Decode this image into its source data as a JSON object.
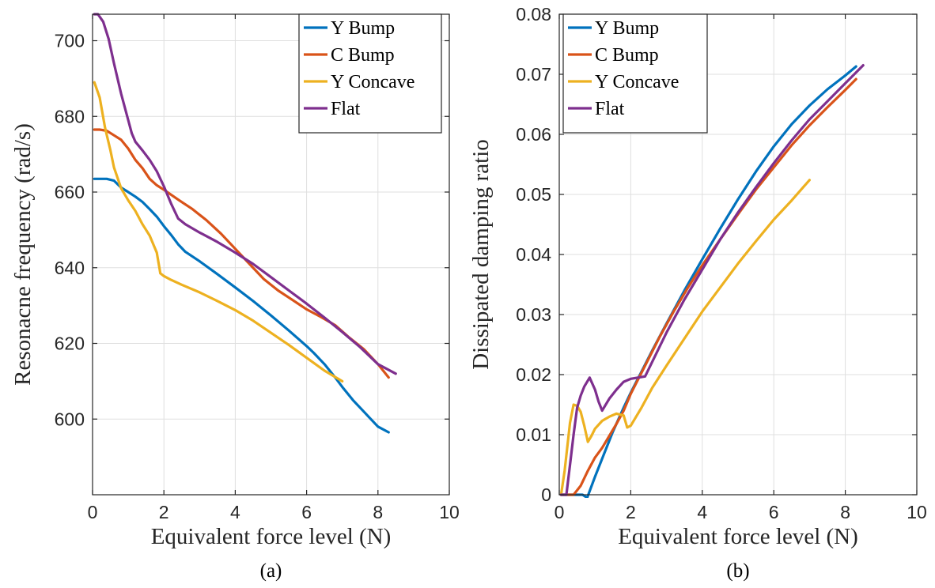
{
  "chart_data": [
    {
      "type": "line",
      "panel_label": "(a)",
      "xlabel": "Equivalent force level (N)",
      "ylabel": "Resonacne frequency (rad/s)",
      "xlim": [
        0,
        10
      ],
      "ylim": [
        580,
        707
      ],
      "xticks": [
        0,
        2,
        4,
        6,
        8,
        10
      ],
      "yticks": [
        600,
        620,
        640,
        660,
        680,
        700
      ],
      "xtick_labels": [
        "0",
        "2",
        "4",
        "6",
        "8",
        "10"
      ],
      "ytick_labels": [
        "600",
        "620",
        "640",
        "660",
        "680",
        "700"
      ],
      "grid": true,
      "legend_position": "top-right",
      "series": [
        {
          "name": "Y Bump",
          "color": "#0072BD",
          "x": [
            0.05,
            0.2,
            0.4,
            0.6,
            0.8,
            1.0,
            1.2,
            1.4,
            1.6,
            1.8,
            2.0,
            2.2,
            2.4,
            2.6,
            3.0,
            3.5,
            4.0,
            4.5,
            5.0,
            5.5,
            6.0,
            6.2,
            6.5,
            6.8,
            7.0,
            7.3,
            7.6,
            7.8,
            8.0,
            8.3
          ],
          "y": [
            663.5,
            663.5,
            663.5,
            663.0,
            661.2,
            660.0,
            658.8,
            657.4,
            655.5,
            653.5,
            651.0,
            648.7,
            646.2,
            644.2,
            641.7,
            638.3,
            634.8,
            631.2,
            627.4,
            623.4,
            619.3,
            617.5,
            614.5,
            611.0,
            608.5,
            605.0,
            602.0,
            600.0,
            598.0,
            596.5
          ]
        },
        {
          "name": "C Bump",
          "color": "#D95319",
          "x": [
            0.05,
            0.2,
            0.4,
            0.6,
            0.8,
            1.0,
            1.2,
            1.4,
            1.6,
            1.8,
            2.0,
            2.4,
            2.8,
            3.2,
            3.6,
            4.0,
            4.4,
            4.8,
            5.2,
            5.6,
            6.0,
            6.4,
            6.8,
            7.2,
            7.6,
            8.0,
            8.3
          ],
          "y": [
            676.5,
            676.5,
            676.2,
            675.0,
            673.8,
            671.5,
            668.5,
            666.3,
            663.5,
            661.8,
            660.6,
            658.0,
            655.5,
            652.5,
            649.0,
            645.0,
            641.0,
            637.0,
            634.0,
            631.5,
            629.0,
            627.0,
            624.8,
            621.5,
            618.5,
            614.5,
            611.0
          ]
        },
        {
          "name": "Y Concave",
          "color": "#EDB120",
          "x": [
            0.05,
            0.2,
            0.35,
            0.5,
            0.6,
            0.8,
            1.0,
            1.2,
            1.4,
            1.6,
            1.8,
            1.9,
            2.0,
            2.2,
            2.5,
            3.0,
            3.5,
            4.0,
            4.5,
            5.0,
            5.5,
            6.0,
            6.5,
            7.0
          ],
          "y": [
            689.0,
            685.0,
            677.0,
            671.0,
            666.5,
            661.0,
            657.8,
            655.0,
            651.5,
            648.5,
            644.0,
            638.5,
            637.8,
            636.8,
            635.5,
            633.5,
            631.2,
            628.8,
            626.0,
            622.8,
            619.6,
            616.2,
            612.8,
            610.0
          ]
        },
        {
          "name": "Flat",
          "color": "#7E2F8E",
          "x": [
            0.05,
            0.15,
            0.3,
            0.45,
            0.6,
            0.8,
            1.0,
            1.1,
            1.2,
            1.4,
            1.6,
            1.8,
            2.0,
            2.2,
            2.4,
            2.6,
            3.0,
            3.5,
            4.0,
            4.5,
            5.0,
            5.5,
            6.0,
            6.5,
            7.0,
            7.5,
            8.0,
            8.5
          ],
          "y": [
            707.0,
            707.0,
            705.0,
            700.5,
            694.0,
            686.0,
            679.0,
            675.5,
            673.3,
            671.0,
            668.5,
            665.5,
            661.5,
            657.0,
            653.0,
            651.5,
            649.3,
            646.8,
            644.0,
            641.0,
            637.5,
            634.0,
            630.5,
            626.8,
            623.0,
            619.0,
            614.5,
            612.0
          ]
        }
      ]
    },
    {
      "type": "line",
      "panel_label": "(b)",
      "xlabel": "Equivalent force level (N)",
      "ylabel": "Dissipated damping ratio",
      "xlim": [
        0,
        10
      ],
      "ylim": [
        0,
        0.08
      ],
      "xticks": [
        0,
        2,
        4,
        6,
        8,
        10
      ],
      "yticks": [
        0,
        0.01,
        0.02,
        0.03,
        0.04,
        0.05,
        0.06,
        0.07,
        0.08
      ],
      "xtick_labels": [
        "0",
        "2",
        "4",
        "6",
        "8",
        "10"
      ],
      "ytick_labels": [
        "0",
        "0.01",
        "0.02",
        "0.03",
        "0.04",
        "0.05",
        "0.06",
        "0.07",
        "0.08"
      ],
      "grid": true,
      "legend_position": "top-left",
      "series": [
        {
          "name": "Y Bump",
          "color": "#0072BD",
          "x": [
            0.05,
            0.3,
            0.5,
            0.65,
            0.78,
            1.0,
            1.2,
            1.5,
            1.8,
            2.0,
            2.3,
            2.6,
            3.0,
            3.5,
            4.0,
            4.5,
            5.0,
            5.5,
            6.0,
            6.5,
            7.0,
            7.5,
            8.0,
            8.3
          ],
          "y": [
            0.0,
            0.0,
            0.0,
            0.0,
            -0.0005,
            0.003,
            0.006,
            0.0105,
            0.0145,
            0.017,
            0.0205,
            0.024,
            0.0285,
            0.034,
            0.0392,
            0.0443,
            0.0492,
            0.0538,
            0.058,
            0.0617,
            0.0648,
            0.0675,
            0.0698,
            0.0713
          ]
        },
        {
          "name": "C Bump",
          "color": "#D95319",
          "x": [
            0.05,
            0.2,
            0.4,
            0.6,
            0.8,
            1.0,
            1.2,
            1.4,
            1.6,
            1.8,
            2.0,
            2.4,
            2.8,
            3.2,
            3.6,
            4.0,
            4.5,
            5.0,
            5.5,
            6.0,
            6.5,
            7.0,
            7.5,
            8.0,
            8.3
          ],
          "y": [
            0.0,
            0.0,
            0.0,
            0.0015,
            0.004,
            0.0062,
            0.0078,
            0.0098,
            0.0118,
            0.014,
            0.0168,
            0.0215,
            0.0262,
            0.0305,
            0.0345,
            0.0382,
            0.0425,
            0.0467,
            0.0508,
            0.0545,
            0.0582,
            0.0615,
            0.0645,
            0.0674,
            0.0692
          ]
        },
        {
          "name": "Y Concave",
          "color": "#EDB120",
          "x": [
            0.05,
            0.15,
            0.3,
            0.4,
            0.5,
            0.6,
            0.7,
            0.8,
            0.9,
            1.0,
            1.2,
            1.4,
            1.6,
            1.8,
            1.9,
            2.0,
            2.3,
            2.6,
            3.0,
            3.5,
            4.0,
            4.5,
            5.0,
            5.5,
            6.0,
            6.5,
            7.0
          ],
          "y": [
            0.0,
            0.004,
            0.012,
            0.015,
            0.0148,
            0.0138,
            0.0115,
            0.0088,
            0.0098,
            0.011,
            0.0123,
            0.013,
            0.0135,
            0.0132,
            0.0112,
            0.0115,
            0.0145,
            0.0178,
            0.0215,
            0.026,
            0.0305,
            0.0345,
            0.0385,
            0.0422,
            0.0458,
            0.049,
            0.0524
          ]
        },
        {
          "name": "Flat",
          "color": "#7E2F8E",
          "x": [
            0.05,
            0.2,
            0.3,
            0.4,
            0.5,
            0.6,
            0.7,
            0.85,
            1.0,
            1.1,
            1.2,
            1.4,
            1.6,
            1.8,
            2.0,
            2.2,
            2.4,
            3.0,
            3.5,
            4.0,
            4.5,
            5.0,
            5.5,
            6.0,
            6.5,
            7.0,
            7.5,
            8.0,
            8.5
          ],
          "y": [
            0.0,
            0.0,
            0.005,
            0.01,
            0.0145,
            0.0165,
            0.018,
            0.0195,
            0.0175,
            0.0155,
            0.014,
            0.016,
            0.0175,
            0.0188,
            0.0193,
            0.0195,
            0.0197,
            0.027,
            0.0325,
            0.0375,
            0.0425,
            0.047,
            0.0512,
            0.0552,
            0.059,
            0.0625,
            0.0655,
            0.0685,
            0.0715
          ]
        }
      ]
    }
  ]
}
